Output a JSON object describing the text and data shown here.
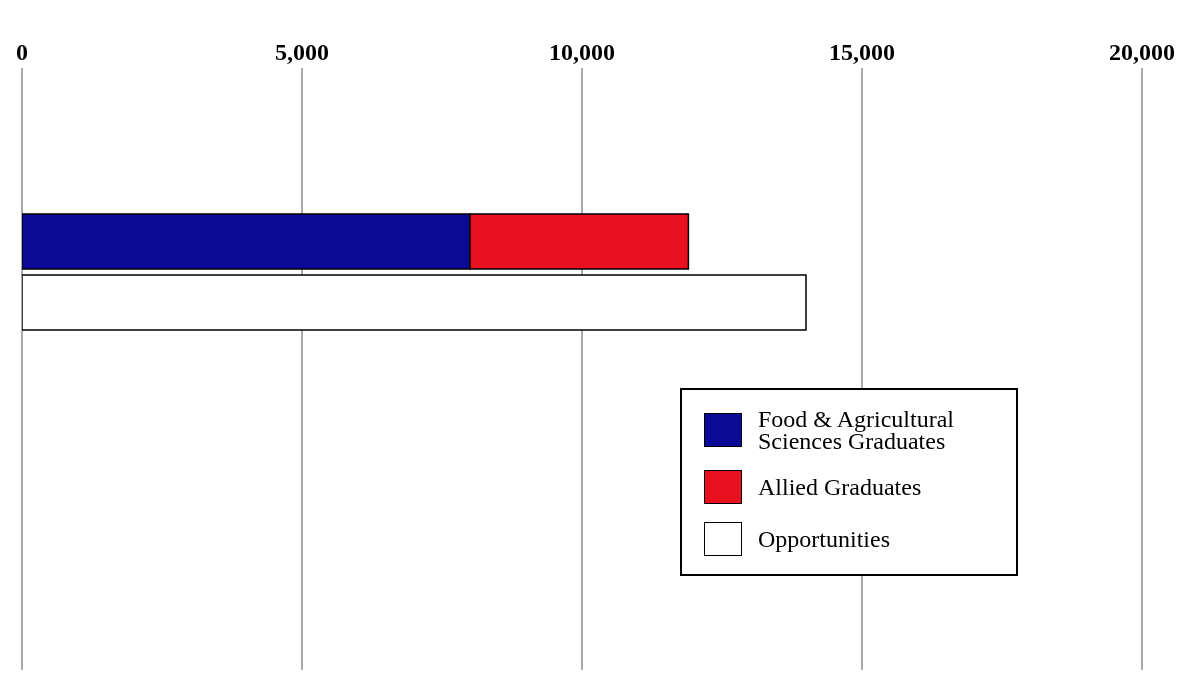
{
  "chart_data": {
    "type": "bar",
    "orientation": "horizontal",
    "stacked": true,
    "categories": [
      null,
      null
    ],
    "series": [
      {
        "name": "Food & Agricultural Sciences Graduates",
        "color": "#0a0a96",
        "values": [
          8000,
          null
        ]
      },
      {
        "name": "Allied Graduates",
        "color": "#e8101e",
        "values": [
          3900,
          null
        ]
      },
      {
        "name": "Opportunities",
        "color": "#ffffff",
        "values": [
          null,
          14000
        ]
      }
    ],
    "xlim": [
      0,
      20000
    ],
    "xticks": [
      {
        "value": 0,
        "label": "0"
      },
      {
        "value": 5000,
        "label": "5,000"
      },
      {
        "value": 10000,
        "label": "10,000"
      },
      {
        "value": 15000,
        "label": "15,000"
      },
      {
        "value": 20000,
        "label": "20,000"
      }
    ],
    "grid": "x",
    "legend": "right",
    "tick_labels": "x"
  }
}
